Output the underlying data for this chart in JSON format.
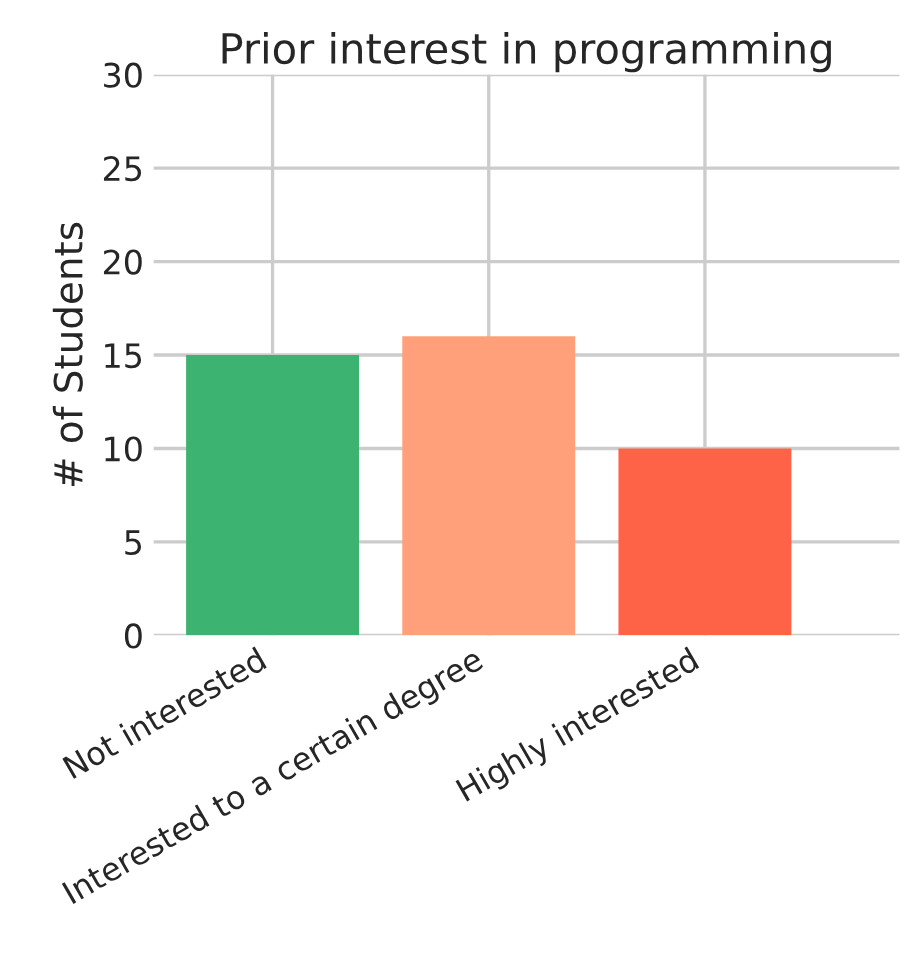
{
  "chart_data": {
    "type": "bar",
    "title": "Prior interest in programming",
    "ylabel": "# of Students",
    "categories": [
      "Not interested",
      "Interested to a certain degree",
      "Highly interested"
    ],
    "values": [
      15,
      16,
      10
    ],
    "colors": [
      "#3cb371",
      "#ffa07a",
      "#ff6347"
    ],
    "ylim": [
      0,
      30
    ],
    "yticks": [
      0,
      5,
      10,
      15,
      20,
      25,
      30
    ],
    "grid": true
  }
}
